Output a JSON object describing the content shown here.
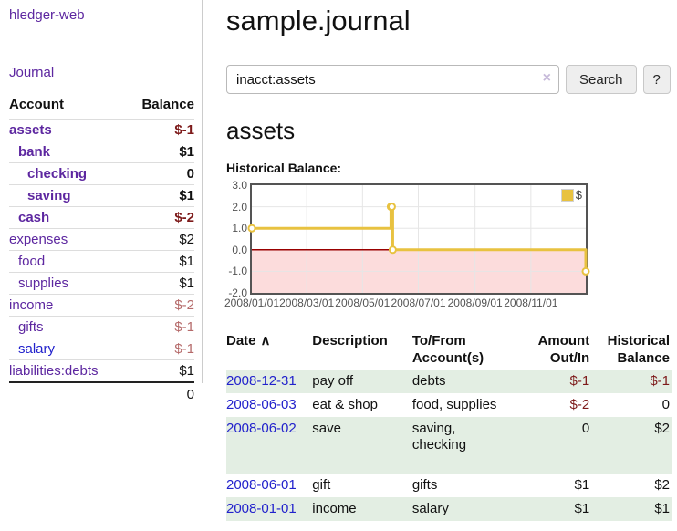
{
  "app": {
    "brand": "hledger-web",
    "nav_journal": "Journal"
  },
  "sidebar": {
    "header": {
      "account": "Account",
      "balance": "Balance"
    },
    "accounts": [
      {
        "name": "assets",
        "indent": 1,
        "bold": true,
        "balance": "$-1",
        "negative": true
      },
      {
        "name": "bank",
        "indent": 2,
        "bold": true,
        "balance": "$1"
      },
      {
        "name": "checking",
        "indent": 3,
        "bold": true,
        "balance": "0"
      },
      {
        "name": "saving",
        "indent": 3,
        "bold": true,
        "balance": "$1"
      },
      {
        "name": "cash",
        "indent": 2,
        "bold": true,
        "balance": "$-2",
        "negative": true
      },
      {
        "name": "expenses",
        "indent": 1,
        "bold": false,
        "balance": "$2"
      },
      {
        "name": "food",
        "indent": 2,
        "bold": false,
        "balance": "$1"
      },
      {
        "name": "supplies",
        "indent": 2,
        "bold": false,
        "balance": "$1"
      },
      {
        "name": "income",
        "indent": 1,
        "bold": false,
        "balance": "$-2",
        "negative": true
      },
      {
        "name": "gifts",
        "indent": 2,
        "bold": false,
        "balance": "$-1",
        "negative": true
      },
      {
        "name": "salary",
        "indent": 2,
        "bold": false,
        "balance": "$-1",
        "negative": true,
        "unvisited": true
      },
      {
        "name": "liabilities:debts",
        "indent": 1,
        "bold": false,
        "balance": "$1"
      }
    ],
    "total": "0"
  },
  "header": {
    "title": "sample.journal"
  },
  "search": {
    "value": "inacct:assets",
    "clear_icon": "×",
    "button": "Search",
    "help_button": "?"
  },
  "account_page": {
    "heading": "assets",
    "chart_label": "Historical Balance:"
  },
  "chart_data": {
    "type": "line",
    "title": "Historical Balance",
    "steps": true,
    "series": [
      {
        "name": "$",
        "color": "#e8c240",
        "points": [
          [
            "2008-01-01",
            1
          ],
          [
            "2008-06-01",
            2
          ],
          [
            "2008-06-02",
            2
          ],
          [
            "2008-06-03",
            0
          ],
          [
            "2008-12-31",
            -1
          ]
        ]
      }
    ],
    "xlim": [
      "2008-01-01",
      "2008-12-31"
    ],
    "ylim": [
      -2,
      3
    ],
    "x_ticks": [
      {
        "date": "2008-01-01",
        "label": "2008/01/01"
      },
      {
        "date": "2008-03-01",
        "label": "2008/03/01"
      },
      {
        "date": "2008-05-01",
        "label": "2008/05/01"
      },
      {
        "date": "2008-07-01",
        "label": "2008/07/01"
      },
      {
        "date": "2008-09-01",
        "label": "2008/09/01"
      },
      {
        "date": "2008-11-01",
        "label": "2008/11/01"
      }
    ],
    "y_ticks": [
      "3.0",
      "2.0",
      "1.0",
      "0.0",
      "-1.0",
      "-2.0"
    ],
    "grid": true,
    "grid_color": "#e6e6e6",
    "border_color": "#545454",
    "negative_region_color": "#fcdcdc",
    "zero_line_color": "#990000",
    "legend": {
      "label": "$",
      "position": "top-right"
    }
  },
  "register": {
    "columns": [
      {
        "key": "date",
        "label": "Date",
        "width": 97,
        "align": "left",
        "sortable": true,
        "sort_icon": "∧"
      },
      {
        "key": "description",
        "label": "Description",
        "width": 107,
        "align": "left"
      },
      {
        "key": "tofrom-accounts",
        "label": "To/From\nAccount(s)",
        "width": 130,
        "align": "left"
      },
      {
        "key": "amount-out-in",
        "label": "Amount\nOut/In",
        "width": 71,
        "align": "right"
      },
      {
        "key": "historical-balance",
        "label": "Historical\nBalance",
        "width": 83,
        "align": "right"
      }
    ],
    "rows": [
      {
        "date": "2008-12-31",
        "description": "pay off",
        "accounts": "debts",
        "amount": "$-1",
        "amount_negative": true,
        "balance": "$-1",
        "balance_negative": true
      },
      {
        "date": "2008-06-03",
        "description": "eat & shop",
        "accounts": "food, supplies",
        "amount": "$-2",
        "amount_negative": true,
        "balance": "0"
      },
      {
        "date": "2008-06-02",
        "description": "save",
        "accounts": "saving,\nchecking",
        "amount": "0",
        "balance": "$2",
        "extra_space": true
      },
      {
        "date": "2008-06-01",
        "description": "gift",
        "accounts": "gifts",
        "amount": "$1",
        "balance": "$2"
      },
      {
        "date": "2008-01-01",
        "description": "income",
        "accounts": "salary",
        "amount": "$1",
        "balance": "$1"
      }
    ]
  }
}
